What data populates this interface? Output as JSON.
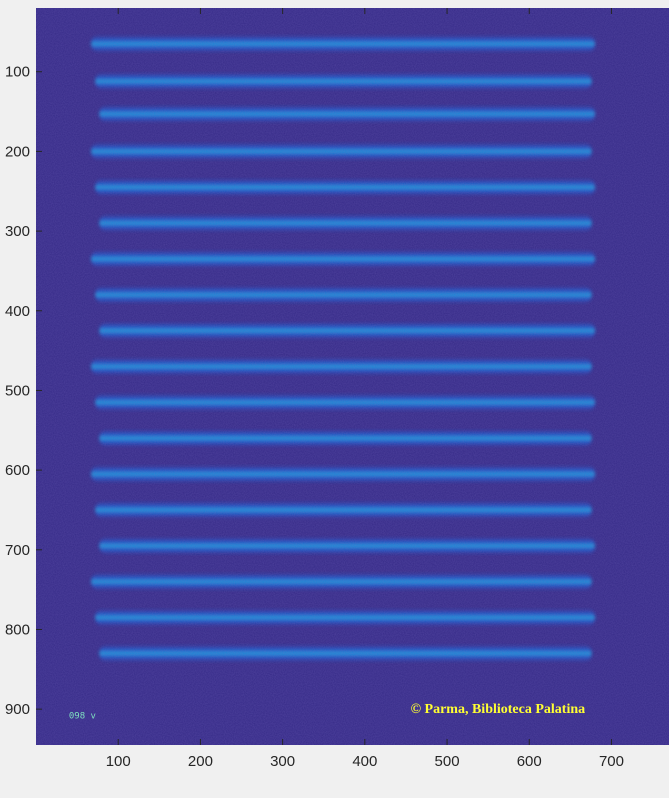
{
  "chart_data": {
    "type": "heatmap",
    "title": "",
    "xlabel": "",
    "ylabel": "",
    "xlim": [
      0,
      770
    ],
    "ylim": [
      945,
      20
    ],
    "y_direction": "reversed",
    "grid": false,
    "x_ticks": [
      100,
      200,
      300,
      400,
      500,
      600,
      700
    ],
    "y_ticks": [
      100,
      200,
      300,
      400,
      500,
      600,
      700,
      800,
      900
    ],
    "colormap": "parula",
    "colors": {
      "background": "#352a87",
      "band_core": "#1ea0dc",
      "band_mid": "#0f6fdc",
      "band_edge": "#1b56c8"
    },
    "bands": {
      "x_start": 75,
      "x_end": 680,
      "thickness": 22,
      "y_centers": [
        65,
        112,
        153,
        200,
        245,
        290,
        335,
        380,
        425,
        470,
        515,
        560,
        605,
        650,
        695,
        740,
        785,
        830
      ]
    },
    "annotations": {
      "copyright": "© Parma, Biblioteca Palatina",
      "corner_mark": "098 v"
    }
  }
}
